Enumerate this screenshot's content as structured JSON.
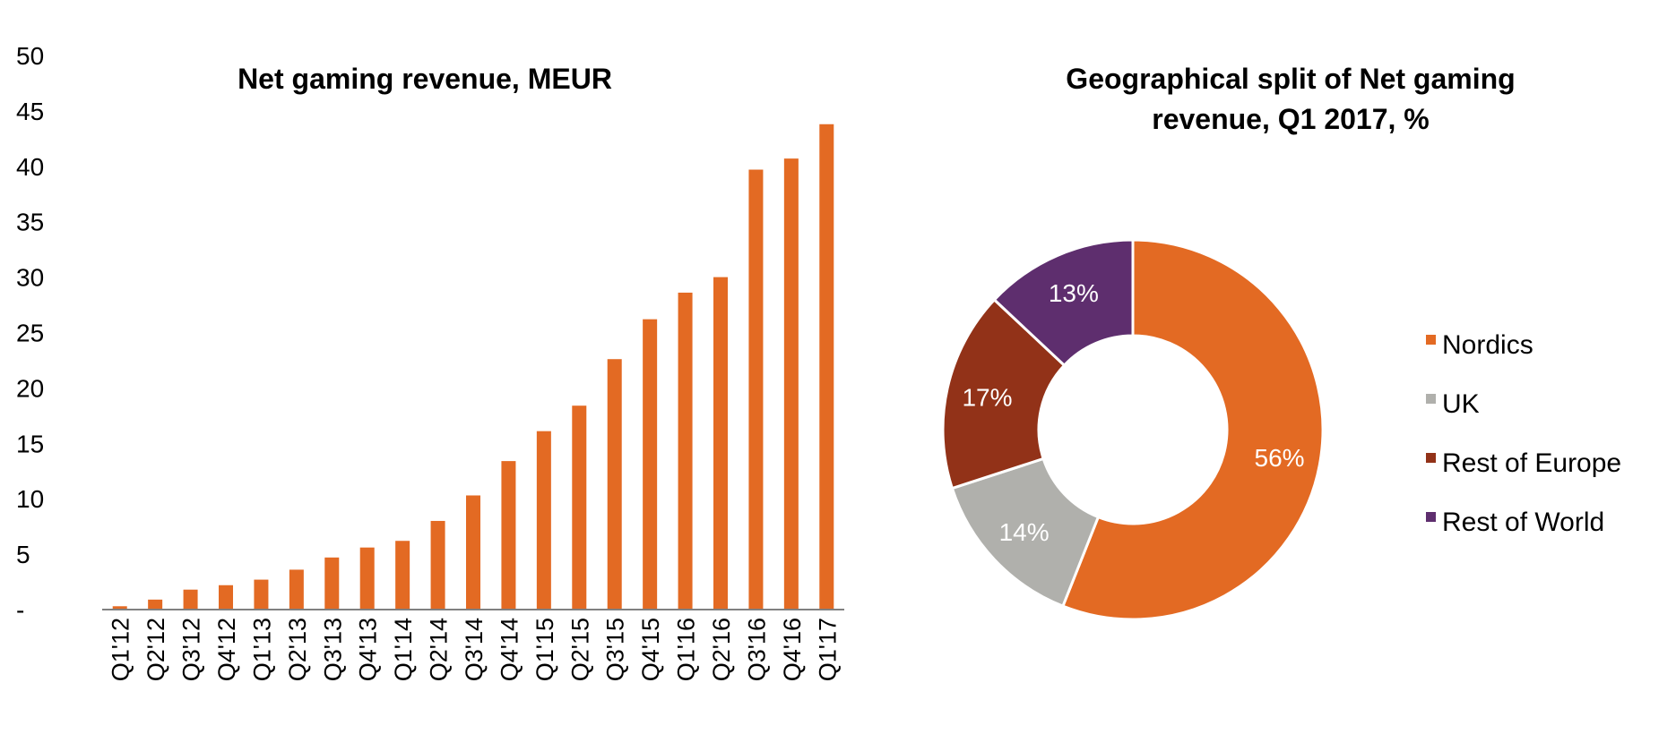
{
  "chart_data": [
    {
      "type": "bar",
      "title": "Net gaming revenue, MEUR",
      "xlabel": "",
      "ylabel": "",
      "ylim": [
        0,
        50
      ],
      "yticks": [
        "-",
        "5",
        "10",
        "15",
        "20",
        "25",
        "30",
        "35",
        "40",
        "45",
        "50"
      ],
      "grid": false,
      "categories": [
        "Q1'12",
        "Q2'12",
        "Q3'12",
        "Q4'12",
        "Q1'13",
        "Q2'13",
        "Q3'13",
        "Q4'13",
        "Q1'14",
        "Q2'14",
        "Q3'14",
        "Q4'14",
        "Q1'15",
        "Q2'15",
        "Q3'15",
        "Q4'15",
        "Q1'16",
        "Q2'16",
        "Q3'16",
        "Q4'16",
        "Q1'17"
      ],
      "values": [
        0.3,
        0.9,
        1.8,
        2.2,
        2.7,
        3.6,
        4.7,
        5.6,
        6.2,
        8.0,
        10.3,
        13.4,
        16.1,
        18.4,
        22.6,
        26.2,
        28.6,
        30.0,
        39.7,
        40.7,
        43.8
      ],
      "color": "#E36A23"
    },
    {
      "type": "pie",
      "title": "Geographical split of Net gaming revenue, Q1 2017, %",
      "legend_position": "right",
      "slices": [
        {
          "name": "Nordics",
          "value": 56,
          "label": "56%",
          "color": "#E36A23"
        },
        {
          "name": "UK",
          "value": 14,
          "label": "14%",
          "color": "#B0B0AC"
        },
        {
          "name": "Rest of Europe",
          "value": 17,
          "label": "17%",
          "color": "#923218"
        },
        {
          "name": "Rest of World",
          "value": 13,
          "label": "13%",
          "color": "#5E2E6E"
        }
      ]
    }
  ]
}
